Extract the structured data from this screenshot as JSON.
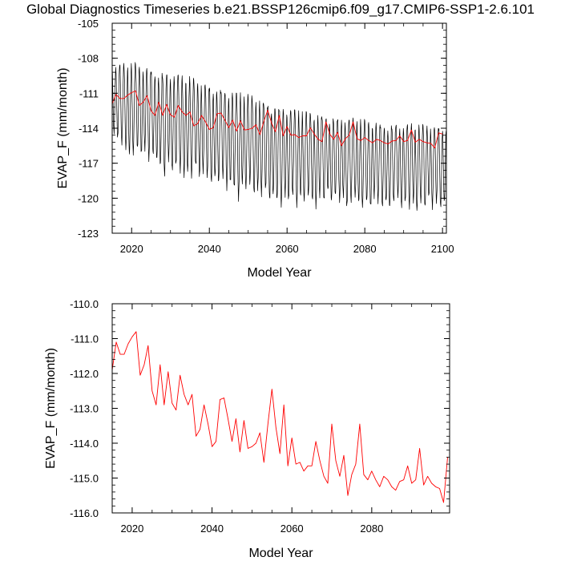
{
  "title": "Global Diagnostics Timeseries b.e21.BSSP126cmip6.f09_g17.CMIP6-SSP1-2.6.101",
  "chart_data": [
    {
      "type": "line",
      "xlabel": "Model Year",
      "ylabel": "EVAP_F (mm/month)",
      "xlim": [
        2015,
        2101
      ],
      "ylim": [
        -123,
        -105
      ],
      "xticks": [
        2020,
        2040,
        2060,
        2080,
        2100
      ],
      "yticks": [
        -105,
        -108,
        -111,
        -114,
        -117,
        -120,
        -123
      ],
      "series": [
        {
          "color": "#000000",
          "style": "monthly timeseries",
          "x_start": 2015.0,
          "x_step": 0.0833333,
          "seasonal_max": [
            -108.0,
            -108.0,
            -108.0,
            -107.9,
            -107.9,
            -107.8,
            -107.9,
            -108.0,
            -108.1,
            -108.2,
            -108.3,
            -108.4,
            -108.4,
            -108.5,
            -108.5,
            -108.6,
            -108.7,
            -108.8,
            -108.9,
            -109.0,
            -109.1,
            -109.2,
            -109.3,
            -109.4,
            -109.5,
            -109.6,
            -109.7,
            -109.8,
            -109.9,
            -110.0,
            -110.1,
            -110.2,
            -110.3,
            -110.4,
            -110.5,
            -110.6,
            -110.7,
            -110.8,
            -110.9,
            -111.0,
            -111.1,
            -111.2,
            -111.3,
            -111.4,
            -111.5,
            -111.6,
            -111.7,
            -111.8,
            -111.9,
            -112.0,
            -112.0,
            -112.1,
            -112.1,
            -112.2,
            -112.2,
            -112.3,
            -112.3,
            -112.4,
            -112.4,
            -112.5,
            -112.5,
            -112.6,
            -112.6,
            -112.7,
            -112.7,
            -112.8,
            -112.8,
            -112.9,
            -112.9,
            -113.0,
            -113.0,
            -113.0,
            -113.0,
            -113.0,
            -113.1,
            -113.1,
            -113.1,
            -113.1,
            -113.2,
            -113.2,
            -113.2,
            -113.2,
            -113.2,
            -113.2,
            -113.2,
            -113.2
          ],
          "seasonal_min": [
            -115.0,
            -115.5,
            -116.0,
            -116.5,
            -117.0,
            -117.0,
            -116.5,
            -117.0,
            -116.5,
            -117.5,
            -117.0,
            -117.5,
            -118.0,
            -119.0,
            -117.5,
            -118.5,
            -118.0,
            -118.5,
            -119.0,
            -118.5,
            -119.0,
            -118.0,
            -119.0,
            -118.5,
            -119.0,
            -119.5,
            -119.0,
            -119.5,
            -119.0,
            -120.0,
            -119.5,
            -120.0,
            -121.0,
            -119.5,
            -120.0,
            -119.5,
            -120.5,
            -120.0,
            -120.5,
            -120.0,
            -121.0,
            -120.5,
            -121.0,
            -121.5,
            -120.5,
            -121.0,
            -120.5,
            -121.5,
            -120.5,
            -121.0,
            -120.5,
            -121.0,
            -121.5,
            -120.5,
            -121.0,
            -120.0,
            -121.0,
            -120.5,
            -121.0,
            -120.5,
            -121.5,
            -121.0,
            -120.5,
            -121.0,
            -121.5,
            -121.0,
            -121.5,
            -120.5,
            -121.0,
            -121.5,
            -121.0,
            -121.5,
            -121.0,
            -120.5,
            -121.5,
            -121.0,
            -121.5,
            -121.0,
            -121.8,
            -121.0,
            -121.5,
            -120.5,
            -121.5,
            -121.0,
            -121.5,
            -121.0
          ]
        },
        {
          "color": "#ff0000",
          "style": "annual mean",
          "x": [
            2015,
            2016,
            2017,
            2018,
            2019,
            2020,
            2021,
            2022,
            2023,
            2024,
            2025,
            2026,
            2027,
            2028,
            2029,
            2030,
            2031,
            2032,
            2033,
            2034,
            2035,
            2036,
            2037,
            2038,
            2039,
            2040,
            2041,
            2042,
            2043,
            2044,
            2045,
            2046,
            2047,
            2048,
            2049,
            2050,
            2051,
            2052,
            2053,
            2054,
            2055,
            2056,
            2057,
            2058,
            2059,
            2060,
            2061,
            2062,
            2063,
            2064,
            2065,
            2066,
            2067,
            2068,
            2069,
            2070,
            2071,
            2072,
            2073,
            2074,
            2075,
            2076,
            2077,
            2078,
            2079,
            2080,
            2081,
            2082,
            2083,
            2084,
            2085,
            2086,
            2087,
            2088,
            2089,
            2090,
            2091,
            2092,
            2093,
            2094,
            2095,
            2096,
            2097,
            2098,
            2099,
            2100
          ],
          "y": [
            -111.9,
            -111.1,
            -111.45,
            -111.45,
            -111.15,
            -110.95,
            -110.8,
            -112.05,
            -111.75,
            -111.2,
            -112.5,
            -112.9,
            -111.75,
            -112.9,
            -111.95,
            -112.85,
            -113.05,
            -112.05,
            -112.6,
            -112.9,
            -112.6,
            -113.8,
            -113.6,
            -112.9,
            -113.45,
            -114.1,
            -113.95,
            -112.75,
            -112.7,
            -113.3,
            -113.95,
            -113.3,
            -114.25,
            -113.35,
            -114.15,
            -114.1,
            -114.0,
            -113.7,
            -114.55,
            -113.45,
            -112.45,
            -113.55,
            -114.3,
            -112.9,
            -114.65,
            -113.85,
            -114.6,
            -114.55,
            -114.8,
            -114.65,
            -114.65,
            -113.95,
            -114.5,
            -114.95,
            -115.15,
            -113.45,
            -114.5,
            -114.95,
            -114.35,
            -115.5,
            -114.9,
            -114.6,
            -113.45,
            -114.9,
            -115.05,
            -114.8,
            -115.05,
            -115.25,
            -114.95,
            -115.05,
            -115.25,
            -115.35,
            -115.1,
            -115.05,
            -114.65,
            -115.15,
            -115.05,
            -114.15,
            -115.2,
            -114.95,
            -115.15,
            -115.25,
            -115.3,
            -115.7,
            -114.4,
            -114.5
          ]
        }
      ]
    },
    {
      "type": "line",
      "xlabel": "Model Year",
      "ylabel": "EVAP_F (mm/month)",
      "xlim": [
        2015,
        2099.5
      ],
      "ylim": [
        -116.0,
        -110.0
      ],
      "xticks": [
        2020,
        2040,
        2060,
        2080
      ],
      "yticks": [
        -110.0,
        -111.0,
        -112.0,
        -113.0,
        -114.0,
        -115.0,
        -116.0
      ],
      "series": [
        {
          "color": "#ff0000",
          "x": [
            2015,
            2016,
            2017,
            2018,
            2019,
            2020,
            2021,
            2022,
            2023,
            2024,
            2025,
            2026,
            2027,
            2028,
            2029,
            2030,
            2031,
            2032,
            2033,
            2034,
            2035,
            2036,
            2037,
            2038,
            2039,
            2040,
            2041,
            2042,
            2043,
            2044,
            2045,
            2046,
            2047,
            2048,
            2049,
            2050,
            2051,
            2052,
            2053,
            2054,
            2055,
            2056,
            2057,
            2058,
            2059,
            2060,
            2061,
            2062,
            2063,
            2064,
            2065,
            2066,
            2067,
            2068,
            2069,
            2070,
            2071,
            2072,
            2073,
            2074,
            2075,
            2076,
            2077,
            2078,
            2079,
            2080,
            2081,
            2082,
            2083,
            2084,
            2085,
            2086,
            2087,
            2088,
            2089,
            2090,
            2091,
            2092,
            2093,
            2094,
            2095,
            2096,
            2097,
            2098,
            2099
          ],
          "y": [
            -111.9,
            -111.1,
            -111.45,
            -111.45,
            -111.15,
            -110.95,
            -110.8,
            -112.05,
            -111.75,
            -111.2,
            -112.5,
            -112.9,
            -111.75,
            -112.9,
            -111.95,
            -112.85,
            -113.05,
            -112.05,
            -112.6,
            -112.9,
            -112.6,
            -113.8,
            -113.6,
            -112.9,
            -113.45,
            -114.1,
            -113.95,
            -112.75,
            -112.7,
            -113.3,
            -113.95,
            -113.3,
            -114.25,
            -113.35,
            -114.15,
            -114.1,
            -114.0,
            -113.7,
            -114.55,
            -113.45,
            -112.45,
            -113.55,
            -114.3,
            -112.9,
            -114.65,
            -113.85,
            -114.6,
            -114.55,
            -114.8,
            -114.65,
            -114.65,
            -113.95,
            -114.5,
            -114.95,
            -115.15,
            -113.45,
            -114.5,
            -114.95,
            -114.35,
            -115.5,
            -114.9,
            -114.6,
            -113.45,
            -114.9,
            -115.05,
            -114.8,
            -115.05,
            -115.25,
            -114.95,
            -115.05,
            -115.25,
            -115.35,
            -115.1,
            -115.05,
            -114.65,
            -115.15,
            -115.05,
            -114.15,
            -115.2,
            -114.95,
            -115.15,
            -115.25,
            -115.3,
            -115.7,
            -114.4
          ]
        }
      ]
    }
  ]
}
